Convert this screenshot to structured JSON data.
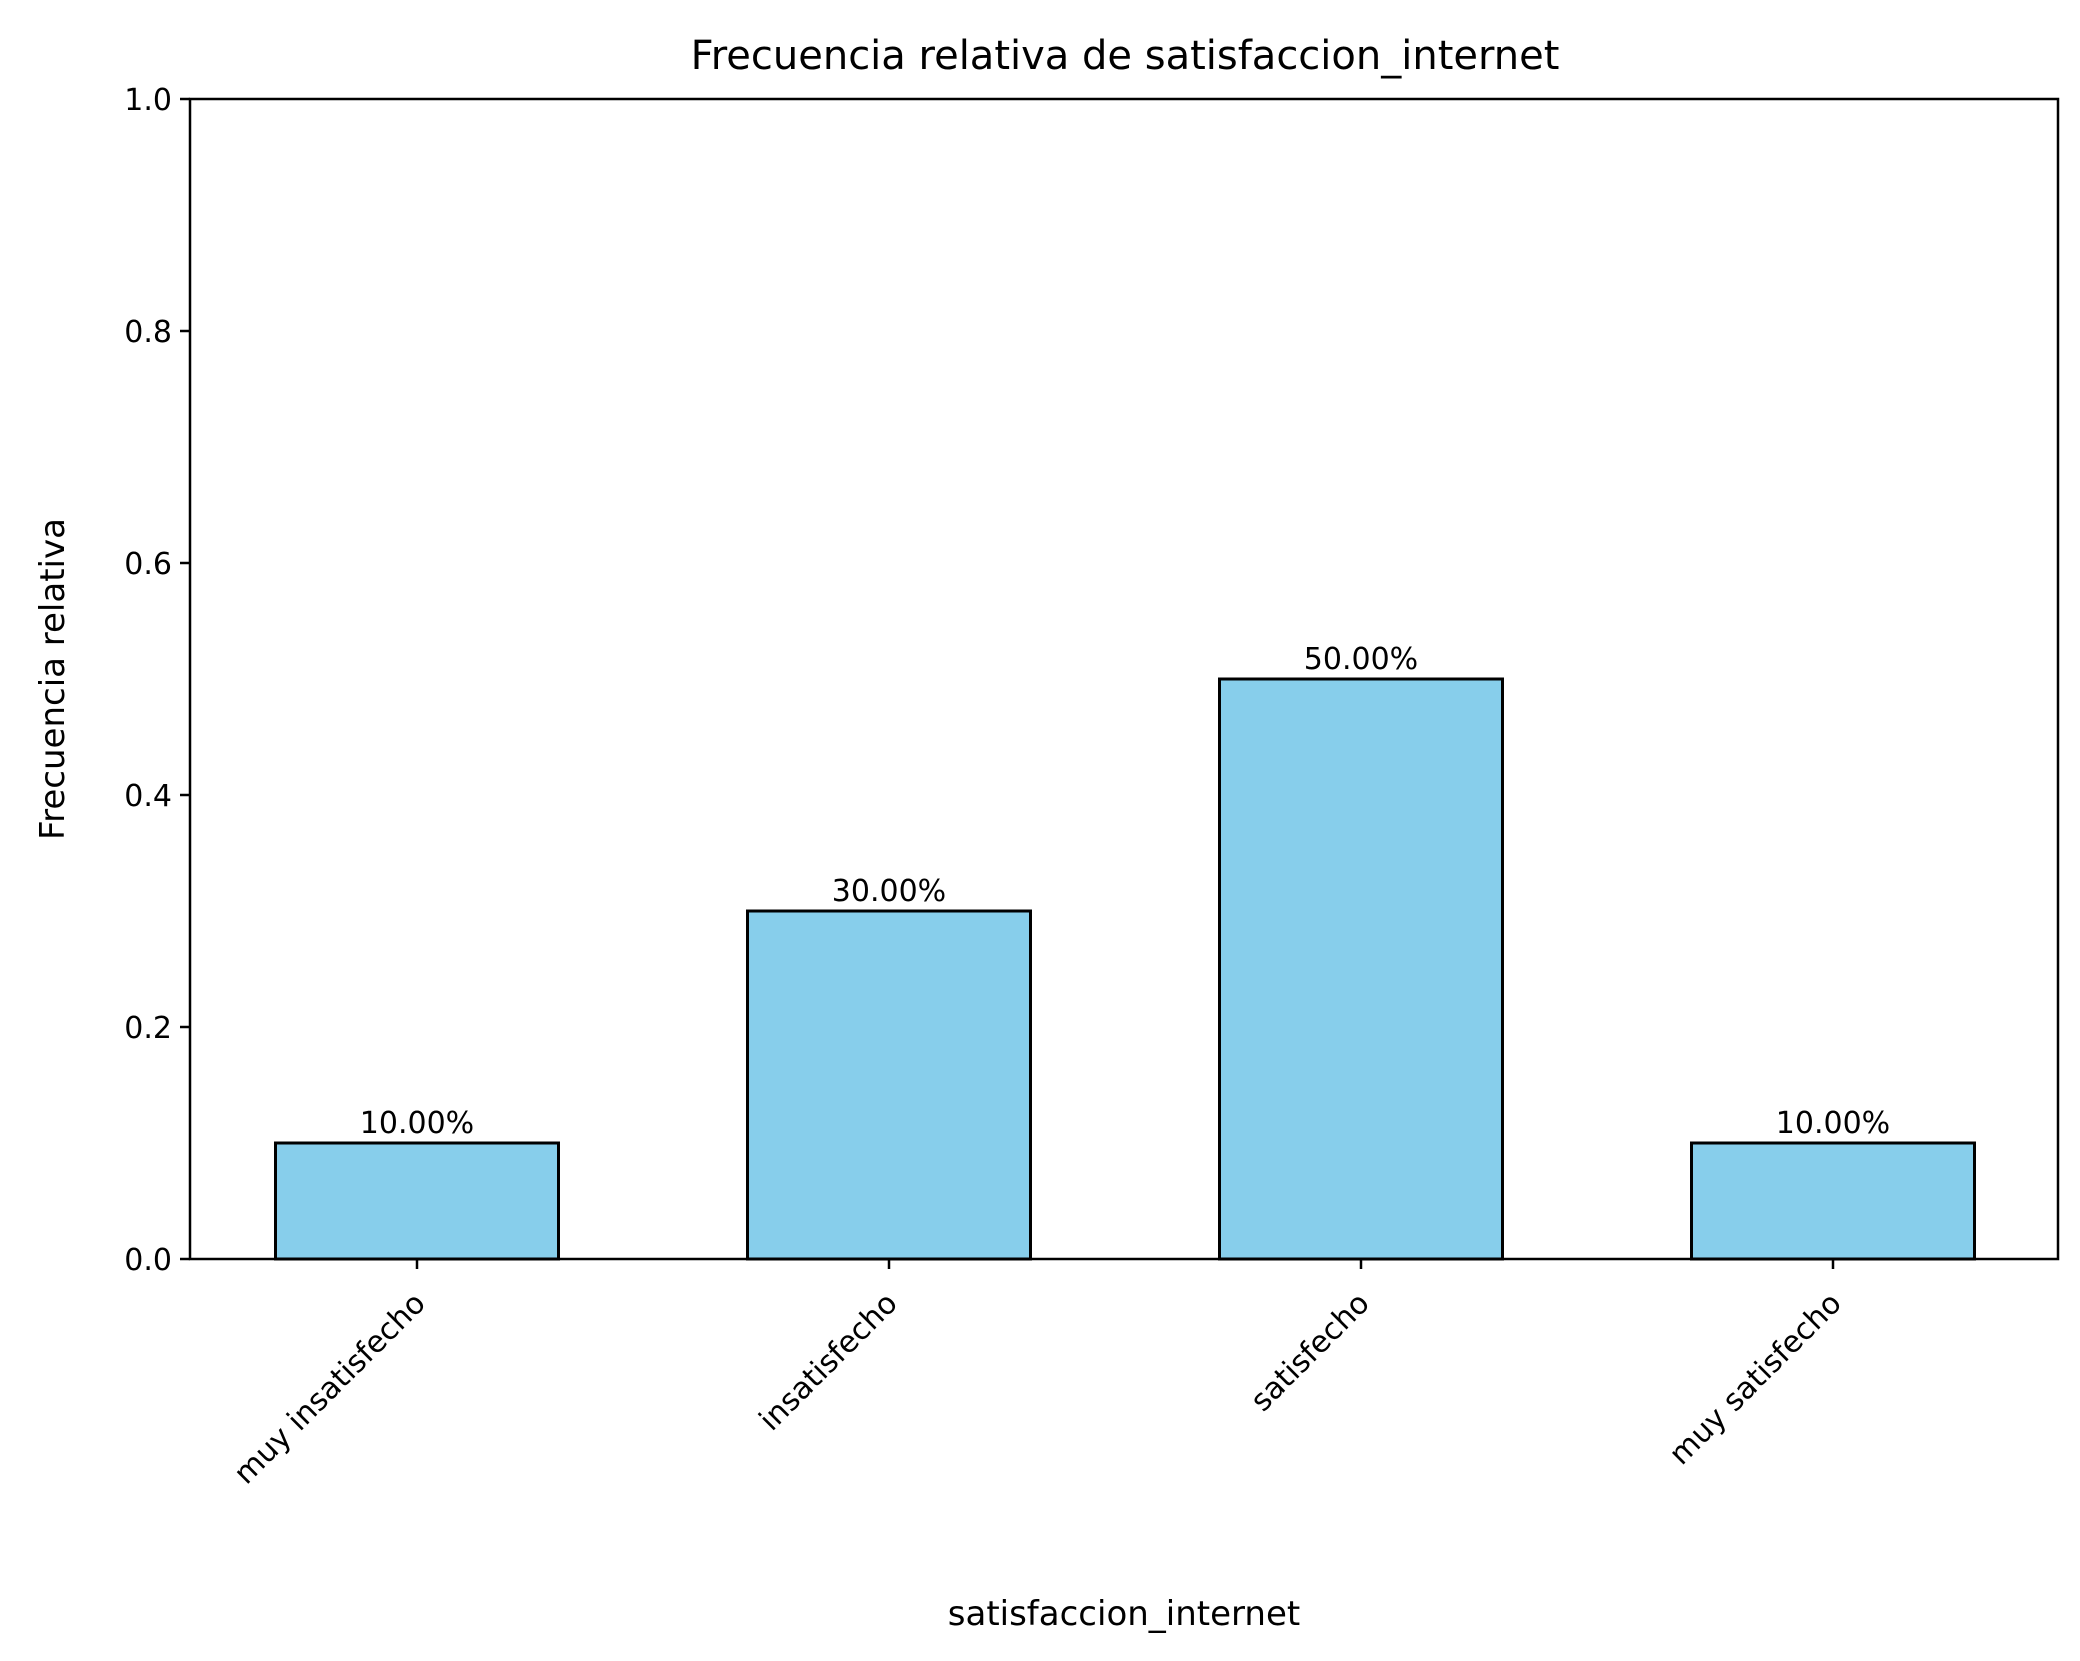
{
  "chart_data": {
    "type": "bar",
    "title": "Frecuencia relativa de satisfaccion_internet",
    "xlabel": "satisfaccion_internet",
    "ylabel": "Frecuencia relativa",
    "categories": [
      "muy insatisfecho",
      "insatisfecho",
      "satisfecho",
      "muy satisfecho"
    ],
    "values": [
      0.1,
      0.3,
      0.5,
      0.1
    ],
    "value_labels": [
      "10.00%",
      "30.00%",
      "50.00%",
      "10.00%"
    ],
    "ylim": [
      0,
      1.0
    ],
    "yticks": [
      "0.0",
      "0.2",
      "0.4",
      "0.6",
      "0.8",
      "1.0"
    ],
    "grid": false,
    "bar_color": "#87CEEB",
    "edge_color": "#000000"
  }
}
